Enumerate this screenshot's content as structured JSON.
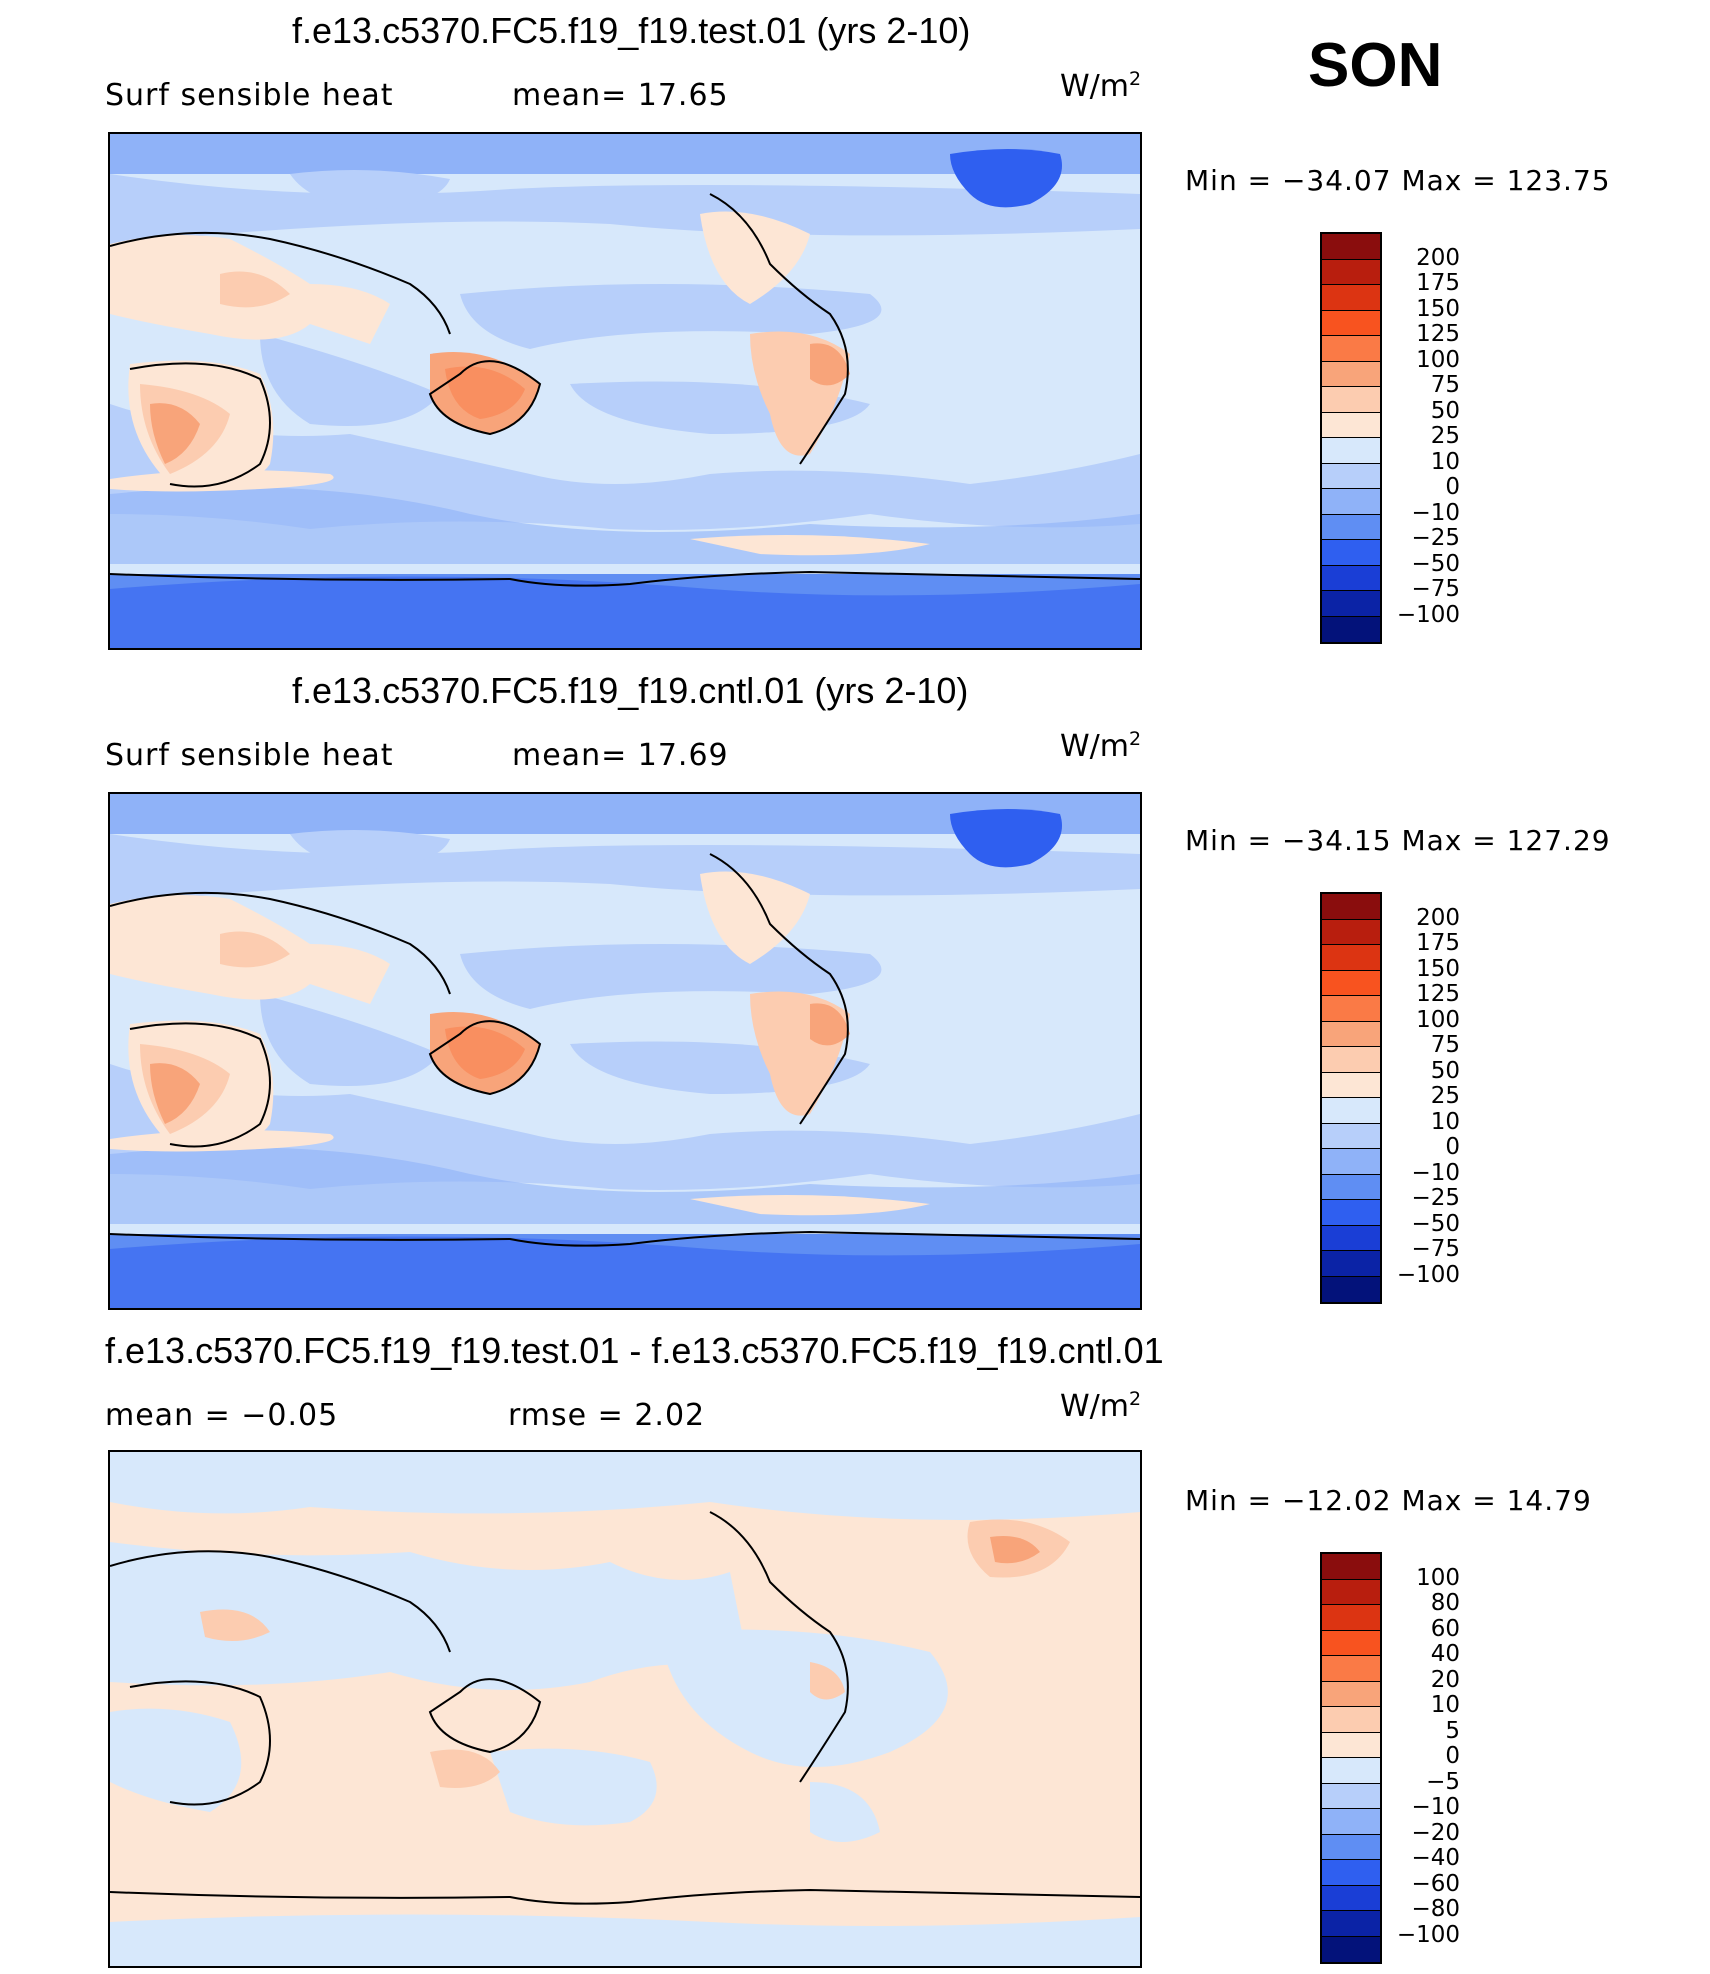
{
  "season": "SON",
  "panels": [
    {
      "title": "f.e13.c5370.FC5.f19_f19.test.01 (yrs 2-10)",
      "left_label": "Surf  sensible  heat",
      "middle_label": "mean=   17.65",
      "units": "W/m",
      "units_exp": "2",
      "minmax": "Min  =  −34.07  Max  =  123.75",
      "colorbar_ticks": [
        "200",
        "175",
        "150",
        "125",
        "100",
        "75",
        "50",
        "25",
        "10",
        "0",
        "−10",
        "−25",
        "−50",
        "−75",
        "−100"
      ],
      "colorbar_colors": [
        "#8a0d0d",
        "#b81e0e",
        "#dc3412",
        "#f8531f",
        "#fa7a46",
        "#f8a47a",
        "#fcccb0",
        "#fde6d5",
        "#d7e8fb",
        "#b7cffa",
        "#8fb2f8",
        "#5f8ef3",
        "#2f5ff0",
        "#1a3ed6",
        "#0b23a6",
        "#03127a"
      ]
    },
    {
      "title": "f.e13.c5370.FC5.f19_f19.cntl.01 (yrs 2-10)",
      "left_label": "Surf  sensible  heat",
      "middle_label": "mean=   17.69",
      "units": "W/m",
      "units_exp": "2",
      "minmax": "Min  =  −34.15  Max  =  127.29",
      "colorbar_ticks": [
        "200",
        "175",
        "150",
        "125",
        "100",
        "75",
        "50",
        "25",
        "10",
        "0",
        "−10",
        "−25",
        "−50",
        "−75",
        "−100"
      ],
      "colorbar_colors": [
        "#8a0d0d",
        "#b81e0e",
        "#dc3412",
        "#f8531f",
        "#fa7a46",
        "#f8a47a",
        "#fcccb0",
        "#fde6d5",
        "#d7e8fb",
        "#b7cffa",
        "#8fb2f8",
        "#5f8ef3",
        "#2f5ff0",
        "#1a3ed6",
        "#0b23a6",
        "#03127a"
      ]
    },
    {
      "title": "f.e13.c5370.FC5.f19_f19.test.01 - f.e13.c5370.FC5.f19_f19.cntl.01",
      "left_label": "mean  =    −0.05",
      "middle_label": "rmse  =     2.02",
      "units": "W/m",
      "units_exp": "2",
      "minmax": "Min  =  −12.02  Max  =    14.79",
      "colorbar_ticks": [
        "100",
        "80",
        "60",
        "40",
        "20",
        "10",
        "5",
        "0",
        "−5",
        "−10",
        "−20",
        "−40",
        "−60",
        "−80",
        "−100"
      ],
      "colorbar_colors": [
        "#8a0d0d",
        "#b81e0e",
        "#dc3412",
        "#f8531f",
        "#fa7a46",
        "#f8a47a",
        "#fcccb0",
        "#fde6d5",
        "#d7e8fb",
        "#b7cffa",
        "#8fb2f8",
        "#5f8ef3",
        "#2f5ff0",
        "#1a3ed6",
        "#0b23a6",
        "#03127a"
      ]
    }
  ]
}
